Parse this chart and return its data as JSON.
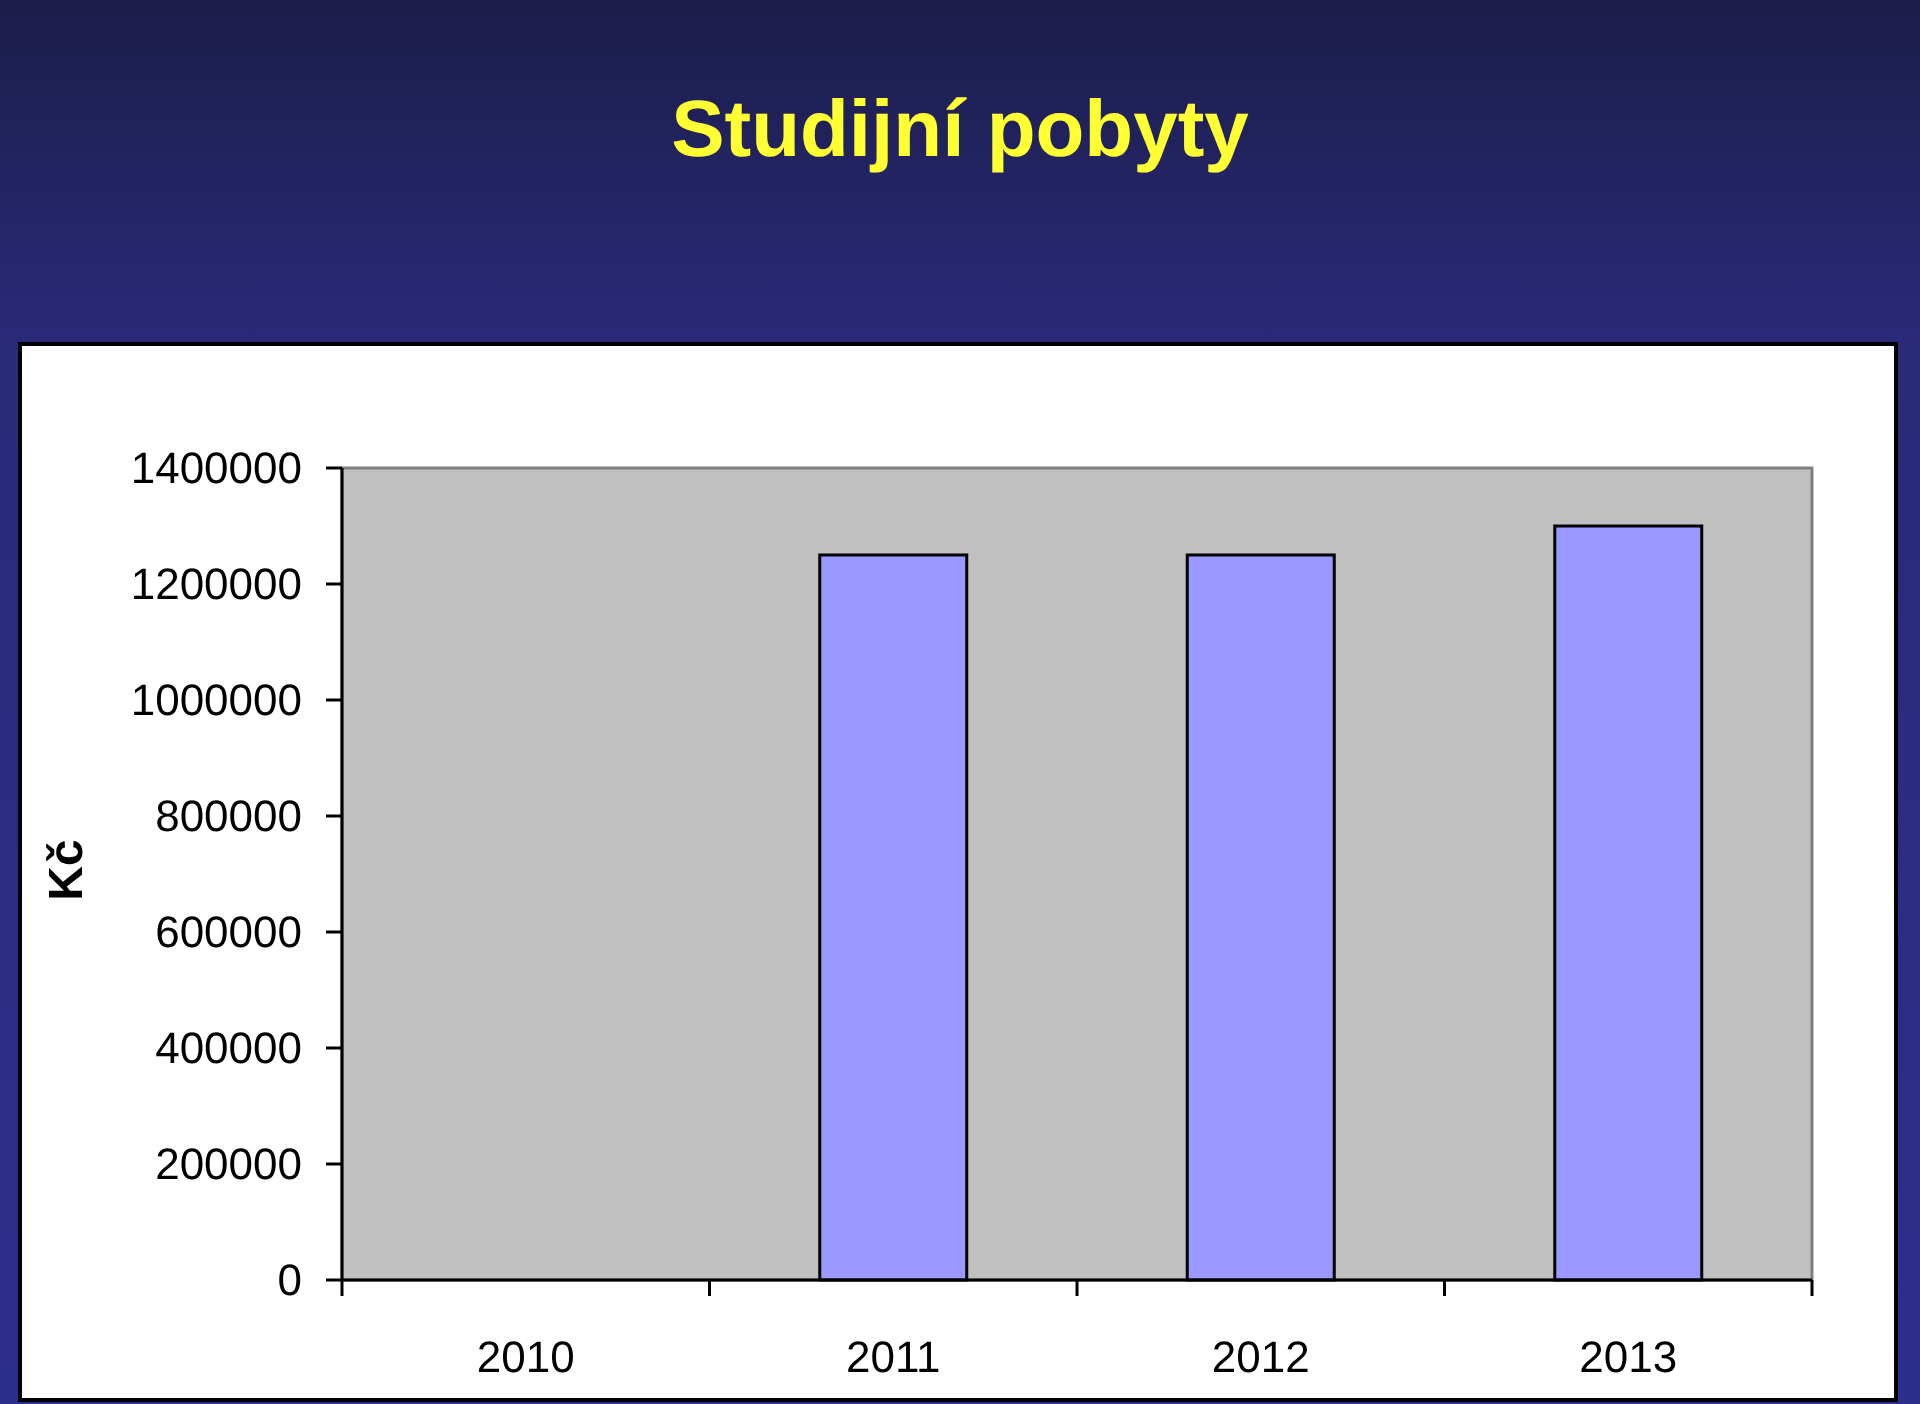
{
  "chart_data": {
    "type": "bar",
    "title": "Studijní pobyty",
    "ylabel": "Kč",
    "categories": [
      "2010",
      "2011",
      "2012",
      "2013"
    ],
    "values": [
      null,
      1250000,
      1250000,
      1300000
    ],
    "color": "#9999ff",
    "ylim": [
      0,
      1400000
    ],
    "yticks": [
      0,
      200000,
      400000,
      600000,
      800000,
      1000000,
      1200000,
      1400000
    ],
    "grid": false
  }
}
